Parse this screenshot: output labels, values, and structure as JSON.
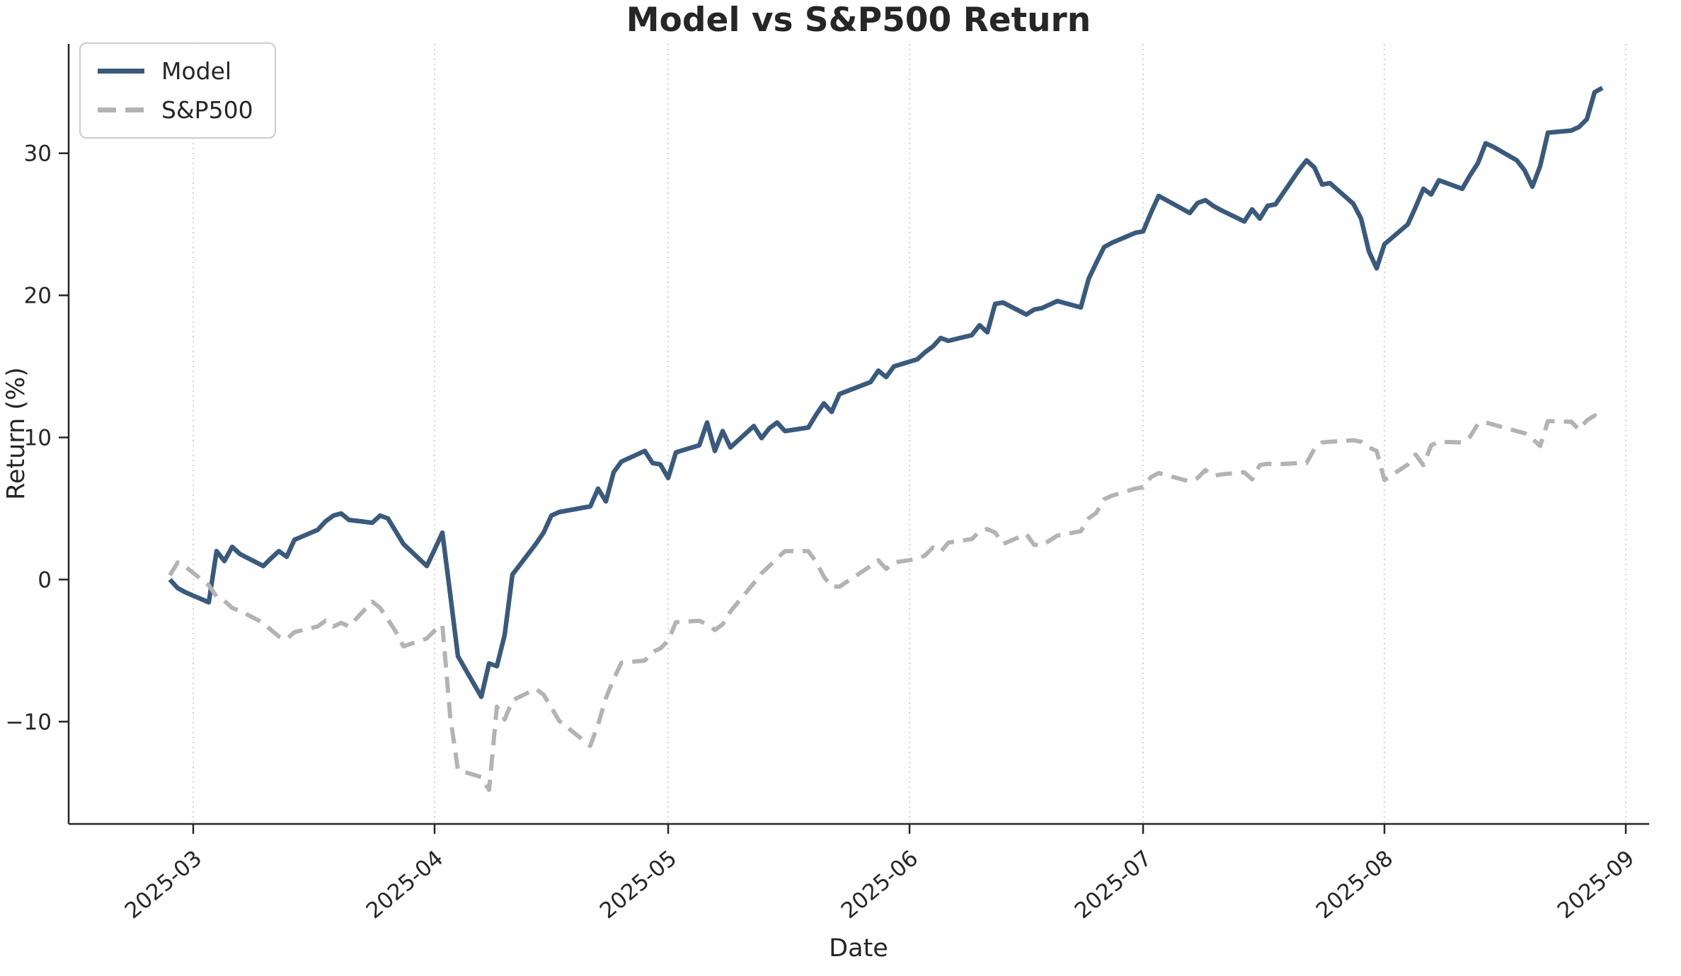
{
  "chart_data": {
    "type": "line",
    "title": "Model vs S&P500 Return",
    "xlabel": "Date",
    "ylabel": "Return (%)",
    "legend_position": "upper left",
    "grid": "vertical dotted gridlines at month ticks only",
    "xlim": [
      "2025-02-13",
      "2025-09-04"
    ],
    "ylim": [
      -17.2,
      37.7
    ],
    "y_ticks": [
      -10,
      0,
      10,
      20,
      30
    ],
    "x_ticks": [
      {
        "label": "2025-03",
        "date": "2025-03-01"
      },
      {
        "label": "2025-04",
        "date": "2025-04-01"
      },
      {
        "label": "2025-05",
        "date": "2025-05-01"
      },
      {
        "label": "2025-06",
        "date": "2025-06-01"
      },
      {
        "label": "2025-07",
        "date": "2025-07-01"
      },
      {
        "label": "2025-08",
        "date": "2025-08-01"
      },
      {
        "label": "2025-09",
        "date": "2025-09-01"
      }
    ],
    "x": [
      "2025-02-26",
      "2025-02-27",
      "2025-02-28",
      "2025-03-03",
      "2025-03-04",
      "2025-03-05",
      "2025-03-06",
      "2025-03-07",
      "2025-03-10",
      "2025-03-11",
      "2025-03-12",
      "2025-03-13",
      "2025-03-14",
      "2025-03-17",
      "2025-03-18",
      "2025-03-19",
      "2025-03-20",
      "2025-03-21",
      "2025-03-24",
      "2025-03-25",
      "2025-03-26",
      "2025-03-27",
      "2025-03-28",
      "2025-03-31",
      "2025-04-01",
      "2025-04-02",
      "2025-04-03",
      "2025-04-04",
      "2025-04-07",
      "2025-04-08",
      "2025-04-09",
      "2025-04-10",
      "2025-04-11",
      "2025-04-14",
      "2025-04-15",
      "2025-04-16",
      "2025-04-17",
      "2025-04-21",
      "2025-04-22",
      "2025-04-23",
      "2025-04-24",
      "2025-04-25",
      "2025-04-28",
      "2025-04-29",
      "2025-04-30",
      "2025-05-01",
      "2025-05-02",
      "2025-05-05",
      "2025-05-06",
      "2025-05-07",
      "2025-05-08",
      "2025-05-09",
      "2025-05-12",
      "2025-05-13",
      "2025-05-14",
      "2025-05-15",
      "2025-05-16",
      "2025-05-19",
      "2025-05-20",
      "2025-05-21",
      "2025-05-22",
      "2025-05-23",
      "2025-05-27",
      "2025-05-28",
      "2025-05-29",
      "2025-05-30",
      "2025-06-02",
      "2025-06-03",
      "2025-06-04",
      "2025-06-05",
      "2025-06-06",
      "2025-06-09",
      "2025-06-10",
      "2025-06-11",
      "2025-06-12",
      "2025-06-13",
      "2025-06-16",
      "2025-06-17",
      "2025-06-18",
      "2025-06-20",
      "2025-06-23",
      "2025-06-24",
      "2025-06-25",
      "2025-06-26",
      "2025-06-27",
      "2025-06-30",
      "2025-07-01",
      "2025-07-02",
      "2025-07-03",
      "2025-07-07",
      "2025-07-08",
      "2025-07-09",
      "2025-07-10",
      "2025-07-11",
      "2025-07-14",
      "2025-07-15",
      "2025-07-16",
      "2025-07-17",
      "2025-07-18",
      "2025-07-21",
      "2025-07-22",
      "2025-07-23",
      "2025-07-24",
      "2025-07-25",
      "2025-07-28",
      "2025-07-29",
      "2025-07-30",
      "2025-07-31",
      "2025-08-01",
      "2025-08-04",
      "2025-08-05",
      "2025-08-06",
      "2025-08-07",
      "2025-08-08",
      "2025-08-11",
      "2025-08-12",
      "2025-08-13",
      "2025-08-14",
      "2025-08-15",
      "2025-08-18",
      "2025-08-19",
      "2025-08-20",
      "2025-08-21",
      "2025-08-22",
      "2025-08-25",
      "2025-08-26",
      "2025-08-27",
      "2025-08-28",
      "2025-08-29"
    ],
    "series": [
      {
        "name": "Model",
        "color": "#3a5a7d",
        "style": "solid",
        "values": [
          0,
          -0.6,
          -0.9,
          -1.6,
          2,
          1.3,
          2.3,
          1.8,
          0.95,
          1.5,
          2,
          1.6,
          2.8,
          3.5,
          4.1,
          4.5,
          4.65,
          4.2,
          4,
          4.5,
          4.3,
          3.4,
          2.5,
          0.95,
          2.1,
          3.3,
          -1,
          -5.4,
          -8.25,
          -5.9,
          -6.1,
          -3.9,
          0.35,
          2.5,
          3.3,
          4.5,
          4.75,
          5.15,
          6.4,
          5.5,
          7.55,
          8.3,
          9.05,
          8.2,
          8.1,
          7.15,
          8.95,
          9.45,
          11.05,
          9.05,
          10.45,
          9.3,
          10.8,
          9.95,
          10.65,
          11.05,
          10.45,
          10.7,
          11.6,
          12.4,
          11.8,
          13.05,
          13.9,
          14.7,
          14.25,
          15,
          15.5,
          16,
          16.4,
          17,
          16.8,
          17.2,
          17.9,
          17.4,
          19.4,
          19.5,
          18.65,
          19,
          19.1,
          19.6,
          19.15,
          21.15,
          22.3,
          23.4,
          23.7,
          24.4,
          24.5,
          25.8,
          27,
          25.8,
          26.5,
          26.7,
          26.3,
          26,
          25.2,
          26.05,
          25.4,
          26.3,
          26.4,
          28.8,
          29.5,
          29,
          27.8,
          27.9,
          26.45,
          25.4,
          23.1,
          21.9,
          23.6,
          25,
          26.2,
          27.5,
          27.1,
          28.1,
          27.5,
          28.45,
          29.3,
          30.7,
          30.45,
          29.5,
          28.8,
          27.65,
          29.1,
          31.45,
          31.6,
          31.85,
          32.4,
          34.3,
          34.6
        ]
      },
      {
        "name": "S&P500",
        "color": "#b3b3b3",
        "style": "dashed",
        "values": [
          0.3,
          1.2,
          0.9,
          -0.4,
          -1.2,
          -1.5,
          -2,
          -2.2,
          -3.05,
          -3.55,
          -4,
          -4.2,
          -3.7,
          -3.3,
          -2.9,
          -3.3,
          -3.05,
          -3.3,
          -1.55,
          -2,
          -2.8,
          -3.65,
          -4.7,
          -4.15,
          -3.6,
          -3.2,
          -9.6,
          -13.4,
          -13.9,
          -14.8,
          -8.95,
          -9.85,
          -8.5,
          -7.7,
          -8.1,
          -9,
          -9.95,
          -11.7,
          -10.2,
          -8.35,
          -7,
          -5.85,
          -5.7,
          -5.1,
          -4.85,
          -4.3,
          -3,
          -2.9,
          -3.15,
          -3.55,
          -3.15,
          -2.25,
          -0.25,
          0.45,
          0.95,
          1.5,
          2,
          2,
          1.25,
          0.2,
          -0.5,
          -0.5,
          0.95,
          1.35,
          0.75,
          1.2,
          1.45,
          1.7,
          2.25,
          1.95,
          2.6,
          2.85,
          3.4,
          3.55,
          3.3,
          2.5,
          3.2,
          2.45,
          2.4,
          3.1,
          3.4,
          4.3,
          4.7,
          5.65,
          5.9,
          6.4,
          6.5,
          7.2,
          7.5,
          6.9,
          7.15,
          7.7,
          7.3,
          7.4,
          7.55,
          7.05,
          8.05,
          8.15,
          8.1,
          8.2,
          8.2,
          9.2,
          9.65,
          9.7,
          9.8,
          9.7,
          9.3,
          9.05,
          7,
          8.1,
          8.8,
          8.05,
          9.45,
          9.7,
          9.65,
          10.05,
          10.95,
          11.05,
          10.9,
          10.45,
          10.3,
          9.9,
          9.4,
          11.15,
          11.1,
          10.55,
          11.2,
          11.55,
          11.2
        ]
      }
    ]
  }
}
